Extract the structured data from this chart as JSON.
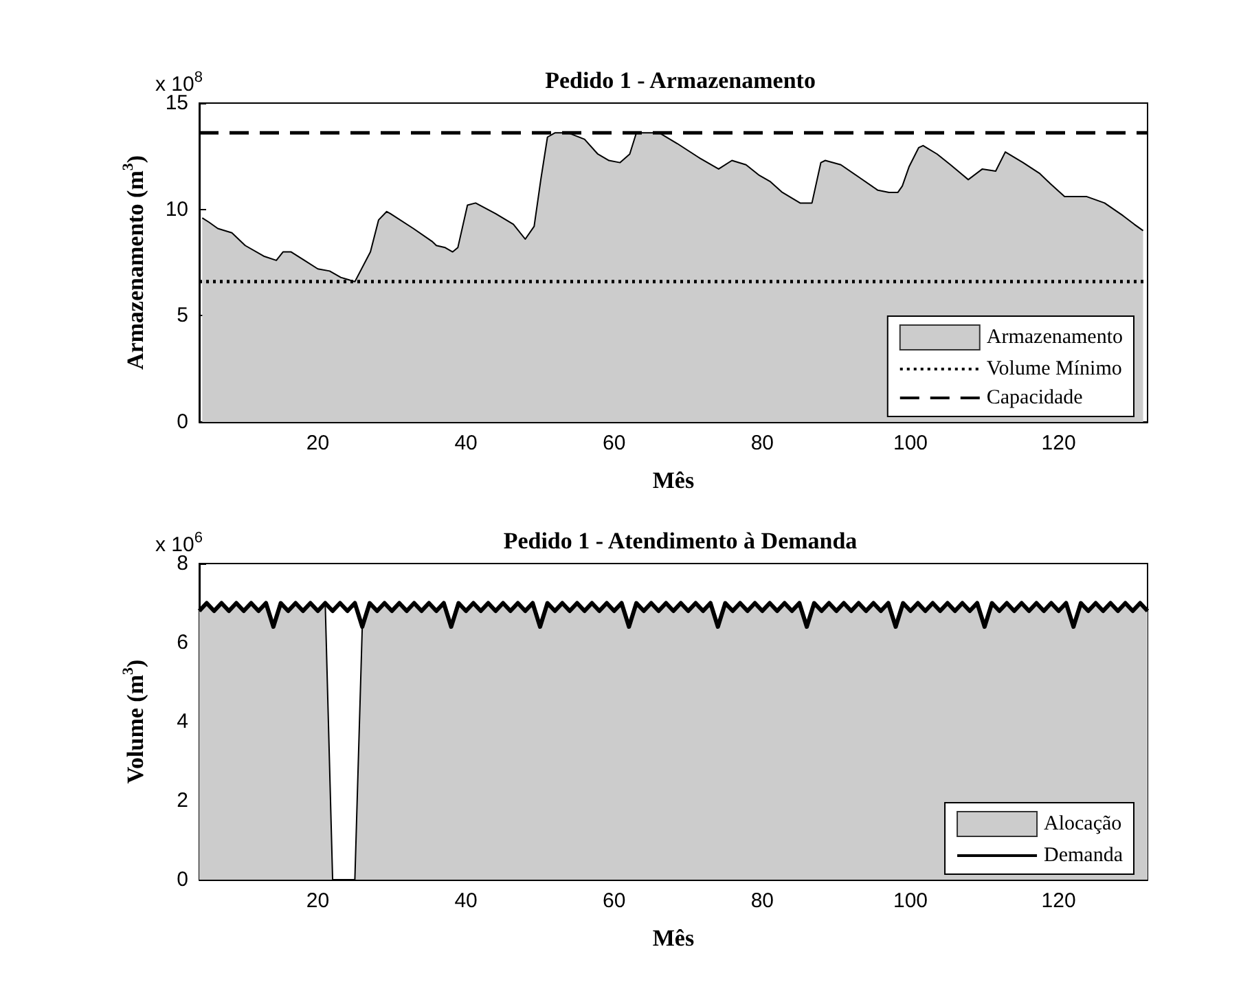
{
  "chart_data": [
    {
      "type": "area",
      "title": "Pedido 1 - Armazenamento",
      "xlabel": "Mês",
      "ylabel": "Armazenamento (m$^{3}$)",
      "annotations": [
        "x 10$^{8}$"
      ],
      "xlim": [
        4,
        132
      ],
      "xticks": [
        20,
        40,
        60,
        80,
        100,
        120
      ],
      "ylim": [
        0,
        15
      ],
      "yticks": [
        0,
        5,
        10,
        15
      ],
      "grid": false,
      "legend": "bottom right",
      "marker": "none",
      "series": [
        {
          "name": "Armazenamento",
          "color": "#cccccc",
          "x": [
            4.4,
            5.3,
            6.5,
            8.4,
            10.2,
            12.7,
            14.4,
            15.3,
            16.4,
            18.2,
            20,
            21.6,
            23.1,
            25,
            27.1,
            28.2,
            29.3,
            29.8,
            32.9,
            35.4,
            36,
            37.2,
            38.2,
            38.9,
            40.2,
            41.3,
            44,
            46.4,
            48,
            49.2,
            50.1,
            51,
            52,
            53.8,
            56,
            57.8,
            59.3,
            60.8,
            62.1,
            63,
            66.1,
            68.5,
            71.6,
            74.1,
            75.9,
            77.8,
            79.6,
            81.1,
            82.7,
            85.1,
            86.7,
            87.9,
            88.5,
            90.6,
            93.1,
            95.6,
            97.1,
            98.3,
            98.9,
            99.8,
            101.1,
            101.7,
            103.6,
            105.4,
            107.8,
            109.7,
            111.5,
            112.8,
            115.2,
            117.4,
            118.9,
            120.8,
            122,
            123.8,
            126.2,
            128.7,
            130.2,
            131.4
          ],
          "values": [
            9.6,
            9.4,
            9.1,
            8.9,
            8.3,
            7.8,
            7.6,
            8.0,
            8.0,
            7.6,
            7.2,
            7.1,
            6.8,
            6.6,
            8.0,
            9.5,
            9.9,
            9.8,
            9.1,
            8.5,
            8.3,
            8.2,
            8.0,
            8.2,
            10.2,
            10.3,
            9.8,
            9.3,
            8.6,
            9.2,
            11.4,
            13.4,
            13.6,
            13.6,
            13.3,
            12.6,
            12.3,
            12.2,
            12.6,
            13.6,
            13.6,
            13.1,
            12.4,
            11.9,
            12.3,
            12.1,
            11.6,
            11.3,
            10.8,
            10.3,
            10.3,
            12.2,
            12.3,
            12.1,
            11.5,
            10.9,
            10.8,
            10.8,
            11.1,
            12.0,
            12.9,
            13.0,
            12.6,
            12.1,
            11.4,
            11.9,
            11.8,
            12.7,
            12.2,
            11.7,
            11.2,
            10.6,
            10.6,
            10.6,
            10.3,
            9.7,
            9.3,
            9.0
          ]
        },
        {
          "name": "Volume Mínimo",
          "type": "line",
          "color": "#000000",
          "line_style": "dotted",
          "x": [
            4,
            132
          ],
          "values": [
            6.6,
            6.6
          ]
        },
        {
          "name": "Capacidade",
          "type": "line",
          "color": "#000000",
          "line_style": "dashed",
          "x": [
            4,
            132
          ],
          "values": [
            13.6,
            13.6
          ]
        }
      ]
    },
    {
      "type": "area",
      "title": "Pedido 1 - Atendimento à Demanda",
      "xlabel": "Mês",
      "ylabel": "Volume (m$^{3}$)",
      "annotations": [
        "x 10$^{6}$"
      ],
      "xlim": [
        4,
        132
      ],
      "xticks": [
        20,
        40,
        60,
        80,
        100,
        120
      ],
      "ylim": [
        0,
        8
      ],
      "yticks": [
        0,
        2,
        4,
        6,
        8
      ],
      "grid": false,
      "legend": "bottom right",
      "marker": "none",
      "x": [
        4,
        5,
        6,
        7,
        8,
        9,
        10,
        11,
        12,
        13,
        14,
        15,
        16,
        17,
        18,
        19,
        20,
        21,
        22,
        23,
        24,
        25,
        26,
        27,
        28,
        29,
        30,
        31,
        32,
        33,
        34,
        35,
        36,
        37,
        38,
        39,
        40,
        41,
        42,
        43,
        44,
        45,
        46,
        47,
        48,
        49,
        50,
        51,
        52,
        53,
        54,
        55,
        56,
        57,
        58,
        59,
        60,
        61,
        62,
        63,
        64,
        65,
        66,
        67,
        68,
        69,
        70,
        71,
        72,
        73,
        74,
        75,
        76,
        77,
        78,
        79,
        80,
        81,
        82,
        83,
        84,
        85,
        86,
        87,
        88,
        89,
        90,
        91,
        92,
        93,
        94,
        95,
        96,
        97,
        98,
        99,
        100,
        101,
        102,
        103,
        104,
        105,
        106,
        107,
        108,
        109,
        110,
        111,
        112,
        113,
        114,
        115,
        116,
        117,
        118,
        119,
        120,
        121,
        122,
        123,
        124,
        125,
        126,
        127,
        128,
        129,
        130,
        131,
        132
      ],
      "series": [
        {
          "name": "Alocação",
          "color": "#cccccc",
          "values": [
            6.8,
            7,
            6.8,
            7,
            6.8,
            7,
            6.8,
            7,
            6.8,
            7,
            6.4,
            7,
            6.8,
            7,
            6.8,
            7,
            6.8,
            7,
            0,
            0,
            0,
            0,
            6.4,
            7,
            6.8,
            7,
            6.8,
            7,
            6.8,
            7,
            6.8,
            7,
            6.8,
            7,
            6.4,
            7,
            6.8,
            7,
            6.8,
            7,
            6.8,
            7,
            6.8,
            7,
            6.8,
            7,
            6.4,
            7,
            6.8,
            7,
            6.8,
            7,
            6.8,
            7,
            6.8,
            7,
            6.8,
            7,
            6.4,
            7,
            6.8,
            7,
            6.8,
            7,
            6.8,
            7,
            6.8,
            7,
            6.8,
            7,
            6.4,
            7,
            6.8,
            7,
            6.8,
            7,
            6.8,
            7,
            6.8,
            7,
            6.8,
            7,
            6.4,
            7,
            6.8,
            7,
            6.8,
            7,
            6.8,
            7,
            6.8,
            7,
            6.8,
            7,
            6.4,
            7,
            6.8,
            7,
            6.8,
            7,
            6.8,
            7,
            6.8,
            7,
            6.8,
            7,
            6.4,
            7,
            6.8,
            7,
            6.8,
            7,
            6.8,
            7,
            6.8,
            7,
            6.8,
            7,
            6.4,
            7,
            6.8,
            7,
            6.8,
            7,
            6.8,
            7,
            6.8,
            7,
            6.8
          ]
        },
        {
          "name": "Demanda",
          "type": "line",
          "color": "#000000",
          "line_style": "solid",
          "values": [
            6.8,
            7,
            6.8,
            7,
            6.8,
            7,
            6.8,
            7,
            6.8,
            7,
            6.4,
            7,
            6.8,
            7,
            6.8,
            7,
            6.8,
            7,
            6.8,
            7,
            6.8,
            7,
            6.4,
            7,
            6.8,
            7,
            6.8,
            7,
            6.8,
            7,
            6.8,
            7,
            6.8,
            7,
            6.4,
            7,
            6.8,
            7,
            6.8,
            7,
            6.8,
            7,
            6.8,
            7,
            6.8,
            7,
            6.4,
            7,
            6.8,
            7,
            6.8,
            7,
            6.8,
            7,
            6.8,
            7,
            6.8,
            7,
            6.4,
            7,
            6.8,
            7,
            6.8,
            7,
            6.8,
            7,
            6.8,
            7,
            6.8,
            7,
            6.4,
            7,
            6.8,
            7,
            6.8,
            7,
            6.8,
            7,
            6.8,
            7,
            6.8,
            7,
            6.4,
            7,
            6.8,
            7,
            6.8,
            7,
            6.8,
            7,
            6.8,
            7,
            6.8,
            7,
            6.4,
            7,
            6.8,
            7,
            6.8,
            7,
            6.8,
            7,
            6.8,
            7,
            6.8,
            7,
            6.4,
            7,
            6.8,
            7,
            6.8,
            7,
            6.8,
            7,
            6.8,
            7,
            6.8,
            7,
            6.4,
            7,
            6.8,
            7,
            6.8,
            7,
            6.8,
            7,
            6.8,
            7,
            6.8
          ]
        }
      ]
    }
  ]
}
